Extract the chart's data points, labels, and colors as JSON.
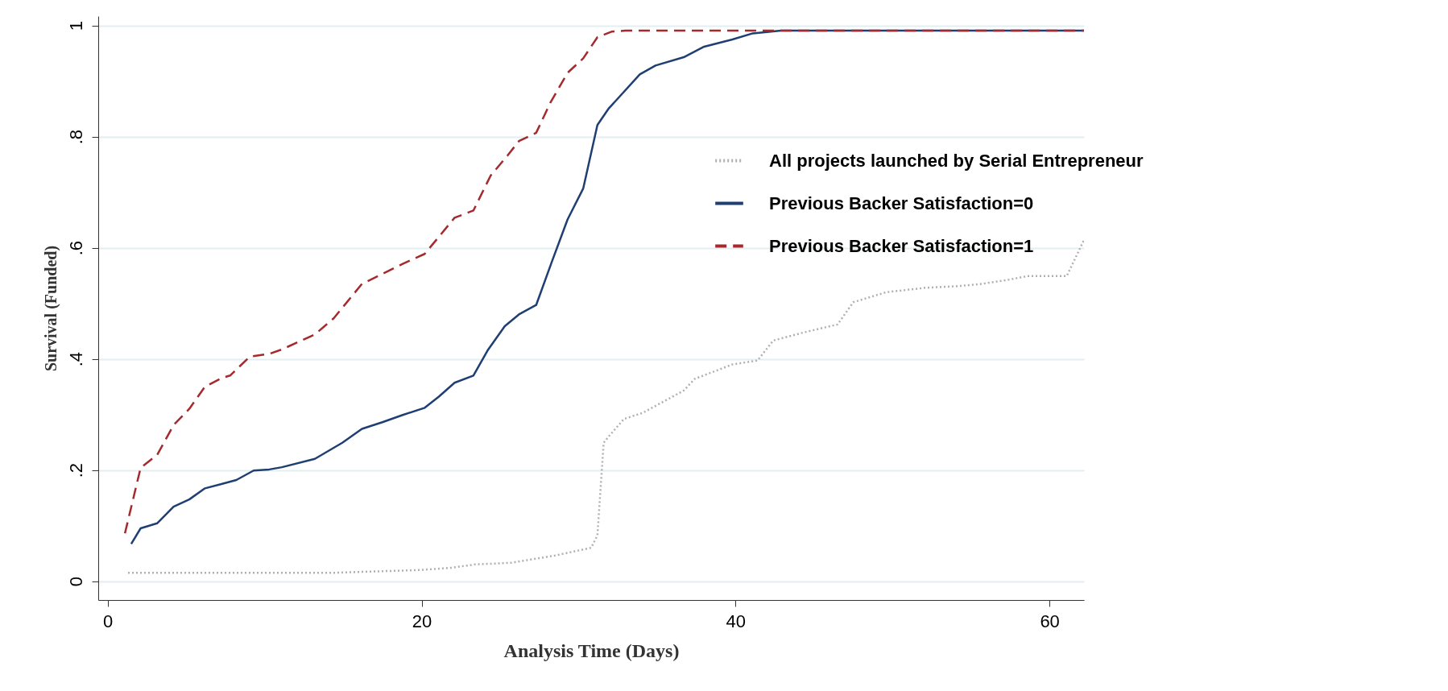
{
  "chart_data": {
    "type": "line",
    "xlabel": "Analysis Time (Days)",
    "ylabel": "Survival (Funded)",
    "xlim": [
      -0.6,
      62.2
    ],
    "xticks": [
      0,
      20,
      40,
      60
    ],
    "ylim": [
      -0.034,
      1.017
    ],
    "yticks": [
      {
        "value": 0,
        "label": "0"
      },
      {
        "value": 0.2,
        "label": ".2"
      },
      {
        "value": 0.4,
        "label": ".4"
      },
      {
        "value": 0.6,
        "label": ".6"
      },
      {
        "value": 0.8,
        "label": ".8"
      },
      {
        "value": 1,
        "label": "1"
      }
    ],
    "grid": "y",
    "legend": "top right",
    "series": [
      {
        "name": "All  projects launched by Serial Entrepreneur",
        "color": "#b0b0b0",
        "line_style": "dotted",
        "x": [
          1.3,
          14.4,
          19.9,
          21.9,
          23.4,
          25.7,
          28.5,
          30.8,
          31.2,
          31.6,
          32.0,
          32.9,
          34.1,
          36.7,
          37.4,
          39.8,
          41.4,
          42.4,
          44.4,
          46.5,
          47.5,
          49.6,
          52.1,
          54.2,
          55.7,
          57.3,
          58.6,
          61.1,
          62.2
        ],
        "values": [
          0.015,
          0.015,
          0.02,
          0.024,
          0.03,
          0.033,
          0.046,
          0.06,
          0.082,
          0.249,
          0.263,
          0.292,
          0.303,
          0.343,
          0.364,
          0.39,
          0.397,
          0.433,
          0.448,
          0.462,
          0.502,
          0.52,
          0.528,
          0.531,
          0.535,
          0.542,
          0.549,
          0.549,
          0.614
        ]
      },
      {
        "name": "Previous Backer Satisfaction=0",
        "color": "#1f3f73",
        "line_style": "solid",
        "x": [
          1.5,
          2.1,
          3.15,
          4.2,
          5.2,
          6.2,
          7.3,
          8.2,
          9.3,
          10.3,
          11.1,
          13.2,
          14.95,
          16.2,
          17.5,
          18.8,
          20.2,
          21.1,
          22.1,
          23.3,
          24.2,
          25.3,
          26.2,
          27.3,
          28.3,
          29.3,
          30.3,
          31.2,
          31.9,
          33.9,
          34.9,
          36.7,
          38.0,
          39.8,
          41.1,
          42.9,
          62.2
        ],
        "values": [
          0.067,
          0.095,
          0.104,
          0.134,
          0.147,
          0.167,
          0.175,
          0.182,
          0.199,
          0.201,
          0.205,
          0.22,
          0.249,
          0.274,
          0.286,
          0.299,
          0.312,
          0.332,
          0.357,
          0.37,
          0.415,
          0.459,
          0.48,
          0.497,
          0.575,
          0.651,
          0.707,
          0.821,
          0.85,
          0.912,
          0.928,
          0.943,
          0.962,
          0.975,
          0.986,
          0.991,
          0.991
        ]
      },
      {
        "name": "Previous Backer Satisfaction=1",
        "color": "#a52a2e",
        "line_style": "dashed",
        "x": [
          1.1,
          2.1,
          3.15,
          4.2,
          5.2,
          6.2,
          7.3,
          7.8,
          9.05,
          10.3,
          11.1,
          13.2,
          14.4,
          16.2,
          17.5,
          18.8,
          20.2,
          22.1,
          23.3,
          24.4,
          25.5,
          26.2,
          27.3,
          28.2,
          29.3,
          30.3,
          31.2,
          32.1,
          33.0,
          62.2
        ],
        "values": [
          0.086,
          0.204,
          0.227,
          0.281,
          0.31,
          0.35,
          0.366,
          0.37,
          0.404,
          0.409,
          0.417,
          0.444,
          0.473,
          0.535,
          0.553,
          0.571,
          0.589,
          0.654,
          0.667,
          0.73,
          0.767,
          0.792,
          0.807,
          0.861,
          0.915,
          0.941,
          0.979,
          0.989,
          0.991,
          0.991
        ]
      }
    ]
  }
}
